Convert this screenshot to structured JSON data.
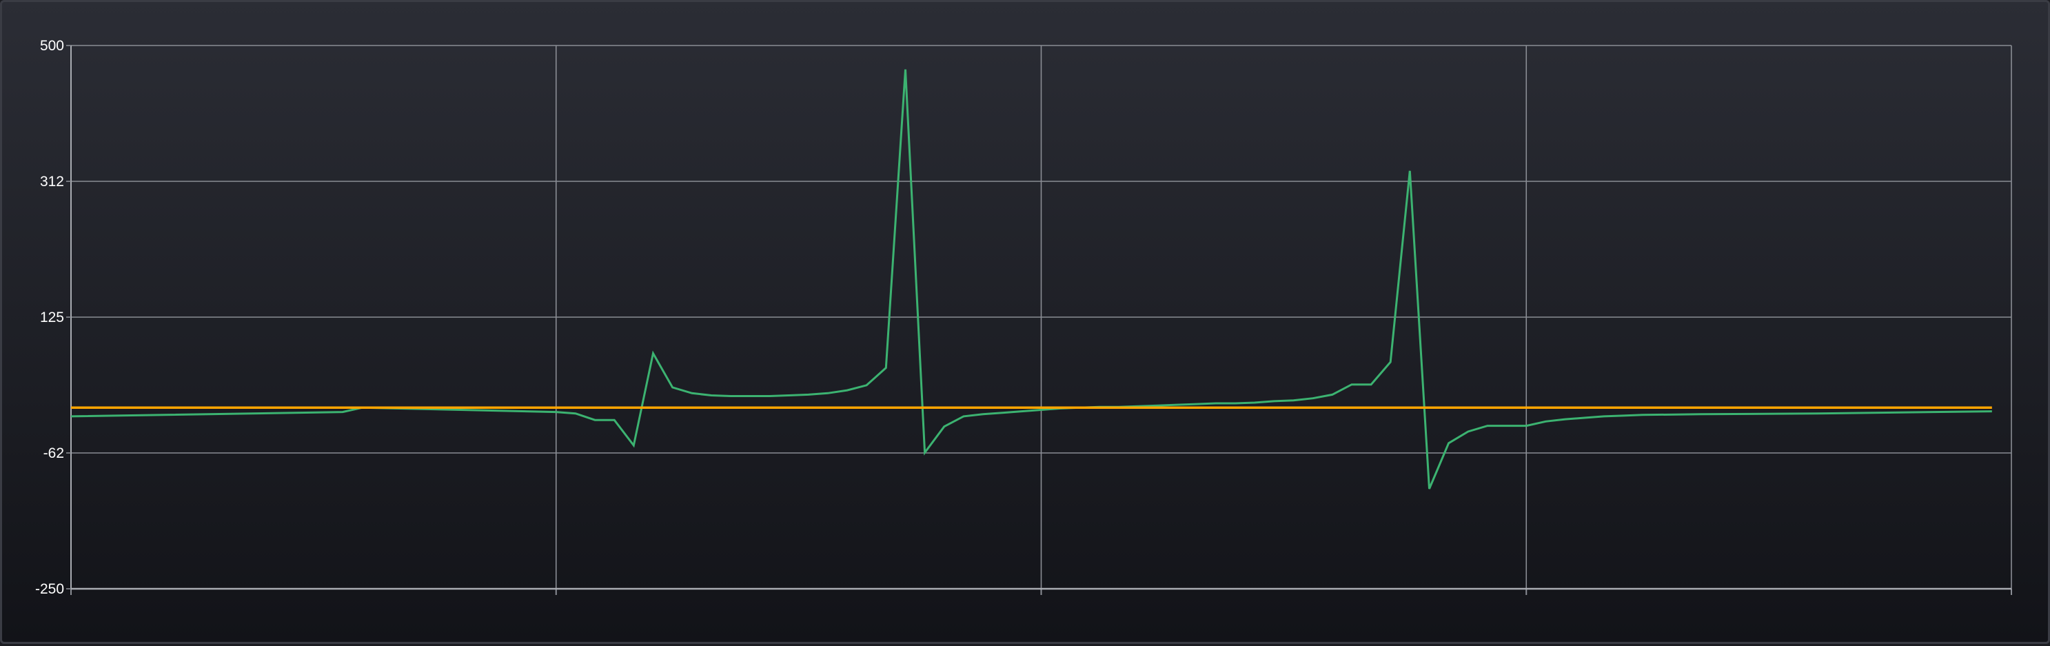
{
  "chart_data": {
    "type": "line",
    "title": "",
    "xlabel": "",
    "ylabel": "",
    "ylim": [
      -250,
      500
    ],
    "xlim": [
      0,
      100
    ],
    "yticks": [
      "500",
      "312",
      "125",
      "-62",
      "-250"
    ],
    "ytick_values": [
      500,
      312.5,
      125,
      -62.5,
      -250
    ],
    "xgrid_values": [
      0,
      25,
      50,
      75,
      100
    ],
    "grid": true,
    "colors": {
      "series_1": "#3cb371",
      "series_2": "#ffa500",
      "grid": "#8a8d94"
    },
    "series": [
      {
        "values": [
          [
            0,
            -12
          ],
          [
            14,
            -6
          ],
          [
            15,
            0
          ],
          [
            25,
            -6
          ],
          [
            26,
            -8
          ],
          [
            27,
            -17
          ],
          [
            28,
            -17
          ],
          [
            29,
            -52
          ],
          [
            30,
            75
          ],
          [
            31,
            28
          ],
          [
            32,
            20
          ],
          [
            33,
            17
          ],
          [
            34,
            16
          ],
          [
            35,
            16
          ],
          [
            36,
            16
          ],
          [
            37,
            17
          ],
          [
            38,
            18
          ],
          [
            39,
            20
          ],
          [
            40,
            24
          ],
          [
            41,
            31
          ],
          [
            42,
            55
          ],
          [
            43,
            467
          ],
          [
            44,
            -62
          ],
          [
            45,
            -26
          ],
          [
            46,
            -12
          ],
          [
            47,
            -9
          ],
          [
            48,
            -7
          ],
          [
            49,
            -5
          ],
          [
            50,
            -3
          ],
          [
            51,
            -1
          ],
          [
            52,
            0
          ],
          [
            53,
            1
          ],
          [
            54,
            1
          ],
          [
            55,
            2
          ],
          [
            56,
            3
          ],
          [
            57,
            4
          ],
          [
            58,
            5
          ],
          [
            59,
            6
          ],
          [
            60,
            6
          ],
          [
            61,
            7
          ],
          [
            62,
            9
          ],
          [
            63,
            10
          ],
          [
            64,
            13
          ],
          [
            65,
            18
          ],
          [
            66,
            32
          ],
          [
            67,
            32
          ],
          [
            68,
            63
          ],
          [
            69,
            327
          ],
          [
            70,
            -112
          ],
          [
            71,
            -49
          ],
          [
            72,
            -33
          ],
          [
            73,
            -25
          ],
          [
            74,
            -25
          ],
          [
            75,
            -25
          ],
          [
            76,
            -19
          ],
          [
            77,
            -16
          ],
          [
            78,
            -14
          ],
          [
            79,
            -12
          ],
          [
            80,
            -11
          ],
          [
            81,
            -10
          ],
          [
            84,
            -9
          ],
          [
            90,
            -8
          ],
          [
            99,
            -5
          ]
        ]
      },
      {
        "values": [
          [
            0,
            0
          ],
          [
            99,
            0
          ]
        ]
      }
    ]
  }
}
